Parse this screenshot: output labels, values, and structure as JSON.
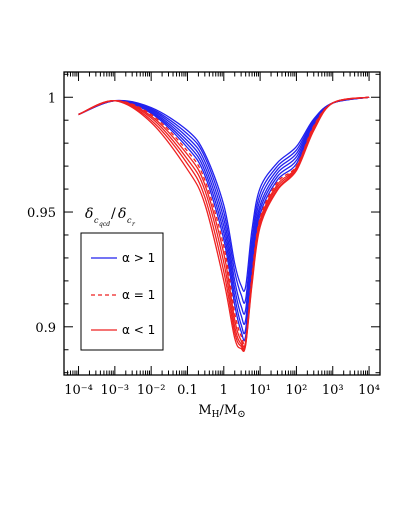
{
  "chart_data": {
    "type": "line",
    "xscale": "log",
    "xlim": [
      3.98e-05,
      20000
    ],
    "ylim": [
      0.879,
      1.011
    ],
    "xlabel": "M_H/M_⊙",
    "ylabel": "",
    "x_ticks": [
      {
        "value": 0.0001,
        "label": "10⁻⁴"
      },
      {
        "value": 0.001,
        "label": "10⁻³"
      },
      {
        "value": 0.01,
        "label": "10⁻²"
      },
      {
        "value": 0.1,
        "label": "0.1"
      },
      {
        "value": 1,
        "label": "1"
      },
      {
        "value": 10,
        "label": "10¹"
      },
      {
        "value": 100,
        "label": "10²"
      },
      {
        "value": 1000,
        "label": "10³"
      },
      {
        "value": 10000,
        "label": "10⁴"
      }
    ],
    "y_ticks": [
      {
        "value": 0.9,
        "label": "0.9"
      },
      {
        "value": 0.95,
        "label": "0.95"
      },
      {
        "value": 1,
        "label": "1"
      }
    ],
    "legend": {
      "title": "δ_c_qcd/δ_c_r",
      "placement": "lower-left",
      "entries": [
        {
          "label": "α > 1",
          "color": "#2222ee",
          "dash": "solid"
        },
        {
          "label": "α = 1",
          "color": "#ee2222",
          "dash": "dashed"
        },
        {
          "label": "α < 1",
          "color": "#ee2222",
          "dash": "solid"
        }
      ]
    },
    "x": [
      0.0001,
      0.001,
      0.01,
      0.1,
      0.3,
      1,
      2,
      3,
      4,
      6,
      10,
      30,
      100,
      300,
      1000,
      10000
    ],
    "series": [
      {
        "group": "alpha_gt_1",
        "color": "#2222ee",
        "dash": "solid",
        "values": [
          0.9925,
          0.9985,
          0.9955,
          0.9855,
          0.9755,
          0.953,
          0.9275,
          0.918,
          0.9175,
          0.9425,
          0.9605,
          0.9715,
          0.9785,
          0.9905,
          0.9975,
          1.0
        ]
      },
      {
        "group": "alpha_gt_1",
        "color": "#2222ee",
        "dash": "solid",
        "values": [
          0.9925,
          0.9985,
          0.995,
          0.984,
          0.974,
          0.95,
          0.924,
          0.914,
          0.912,
          0.9385,
          0.958,
          0.97,
          0.977,
          0.99,
          0.9975,
          1.0
        ]
      },
      {
        "group": "alpha_gt_1",
        "color": "#2222ee",
        "dash": "solid",
        "values": [
          0.9925,
          0.9985,
          0.9945,
          0.9825,
          0.972,
          0.947,
          0.92,
          0.909,
          0.9075,
          0.935,
          0.9555,
          0.9685,
          0.9755,
          0.9895,
          0.9975,
          1.0
        ]
      },
      {
        "group": "alpha_gt_1",
        "color": "#2222ee",
        "dash": "solid",
        "values": [
          0.9925,
          0.9985,
          0.994,
          0.981,
          0.97,
          0.944,
          0.9165,
          0.905,
          0.903,
          0.9315,
          0.953,
          0.967,
          0.974,
          0.989,
          0.9975,
          1.0
        ]
      },
      {
        "group": "alpha_gt_1",
        "color": "#2222ee",
        "dash": "solid",
        "values": [
          0.9925,
          0.9985,
          0.9935,
          0.9795,
          0.968,
          0.941,
          0.913,
          0.901,
          0.899,
          0.928,
          0.951,
          0.9655,
          0.9725,
          0.9885,
          0.9975,
          1.0
        ]
      },
      {
        "group": "alpha_gt_1",
        "color": "#2222ee",
        "dash": "solid",
        "values": [
          0.9925,
          0.9985,
          0.993,
          0.978,
          0.966,
          0.938,
          0.9095,
          0.898,
          0.896,
          0.925,
          0.949,
          0.964,
          0.971,
          0.988,
          0.9975,
          1.0
        ]
      },
      {
        "group": "alpha_eq_1",
        "color": "#ee2222",
        "dash": "dashed",
        "values": [
          0.9925,
          0.9985,
          0.9925,
          0.9765,
          0.964,
          0.935,
          0.906,
          0.896,
          0.8945,
          0.923,
          0.9475,
          0.963,
          0.97,
          0.9875,
          0.9975,
          1.0
        ]
      },
      {
        "group": "alpha_lt_1",
        "color": "#ee2222",
        "dash": "solid",
        "values": [
          0.9925,
          0.9985,
          0.9918,
          0.975,
          0.962,
          0.932,
          0.903,
          0.894,
          0.8935,
          0.9215,
          0.9465,
          0.962,
          0.9695,
          0.987,
          0.9975,
          1.0
        ]
      },
      {
        "group": "alpha_lt_1",
        "color": "#ee2222",
        "dash": "solid",
        "values": [
          0.9925,
          0.9985,
          0.991,
          0.973,
          0.9595,
          0.928,
          0.9,
          0.8925,
          0.893,
          0.9205,
          0.9455,
          0.961,
          0.969,
          0.9865,
          0.9975,
          1.0
        ]
      },
      {
        "group": "alpha_lt_1",
        "color": "#ee2222",
        "dash": "solid",
        "values": [
          0.9925,
          0.9985,
          0.99,
          0.971,
          0.9565,
          0.924,
          0.8975,
          0.8915,
          0.8925,
          0.9195,
          0.9445,
          0.96,
          0.9685,
          0.986,
          0.9975,
          1.0
        ]
      },
      {
        "group": "alpha_lt_1",
        "color": "#ee2222",
        "dash": "solid",
        "values": [
          0.9925,
          0.9985,
          0.989,
          0.9685,
          0.9535,
          0.92,
          0.895,
          0.8905,
          0.892,
          0.9185,
          0.9435,
          0.9595,
          0.968,
          0.9855,
          0.9975,
          1.0
        ]
      }
    ]
  }
}
